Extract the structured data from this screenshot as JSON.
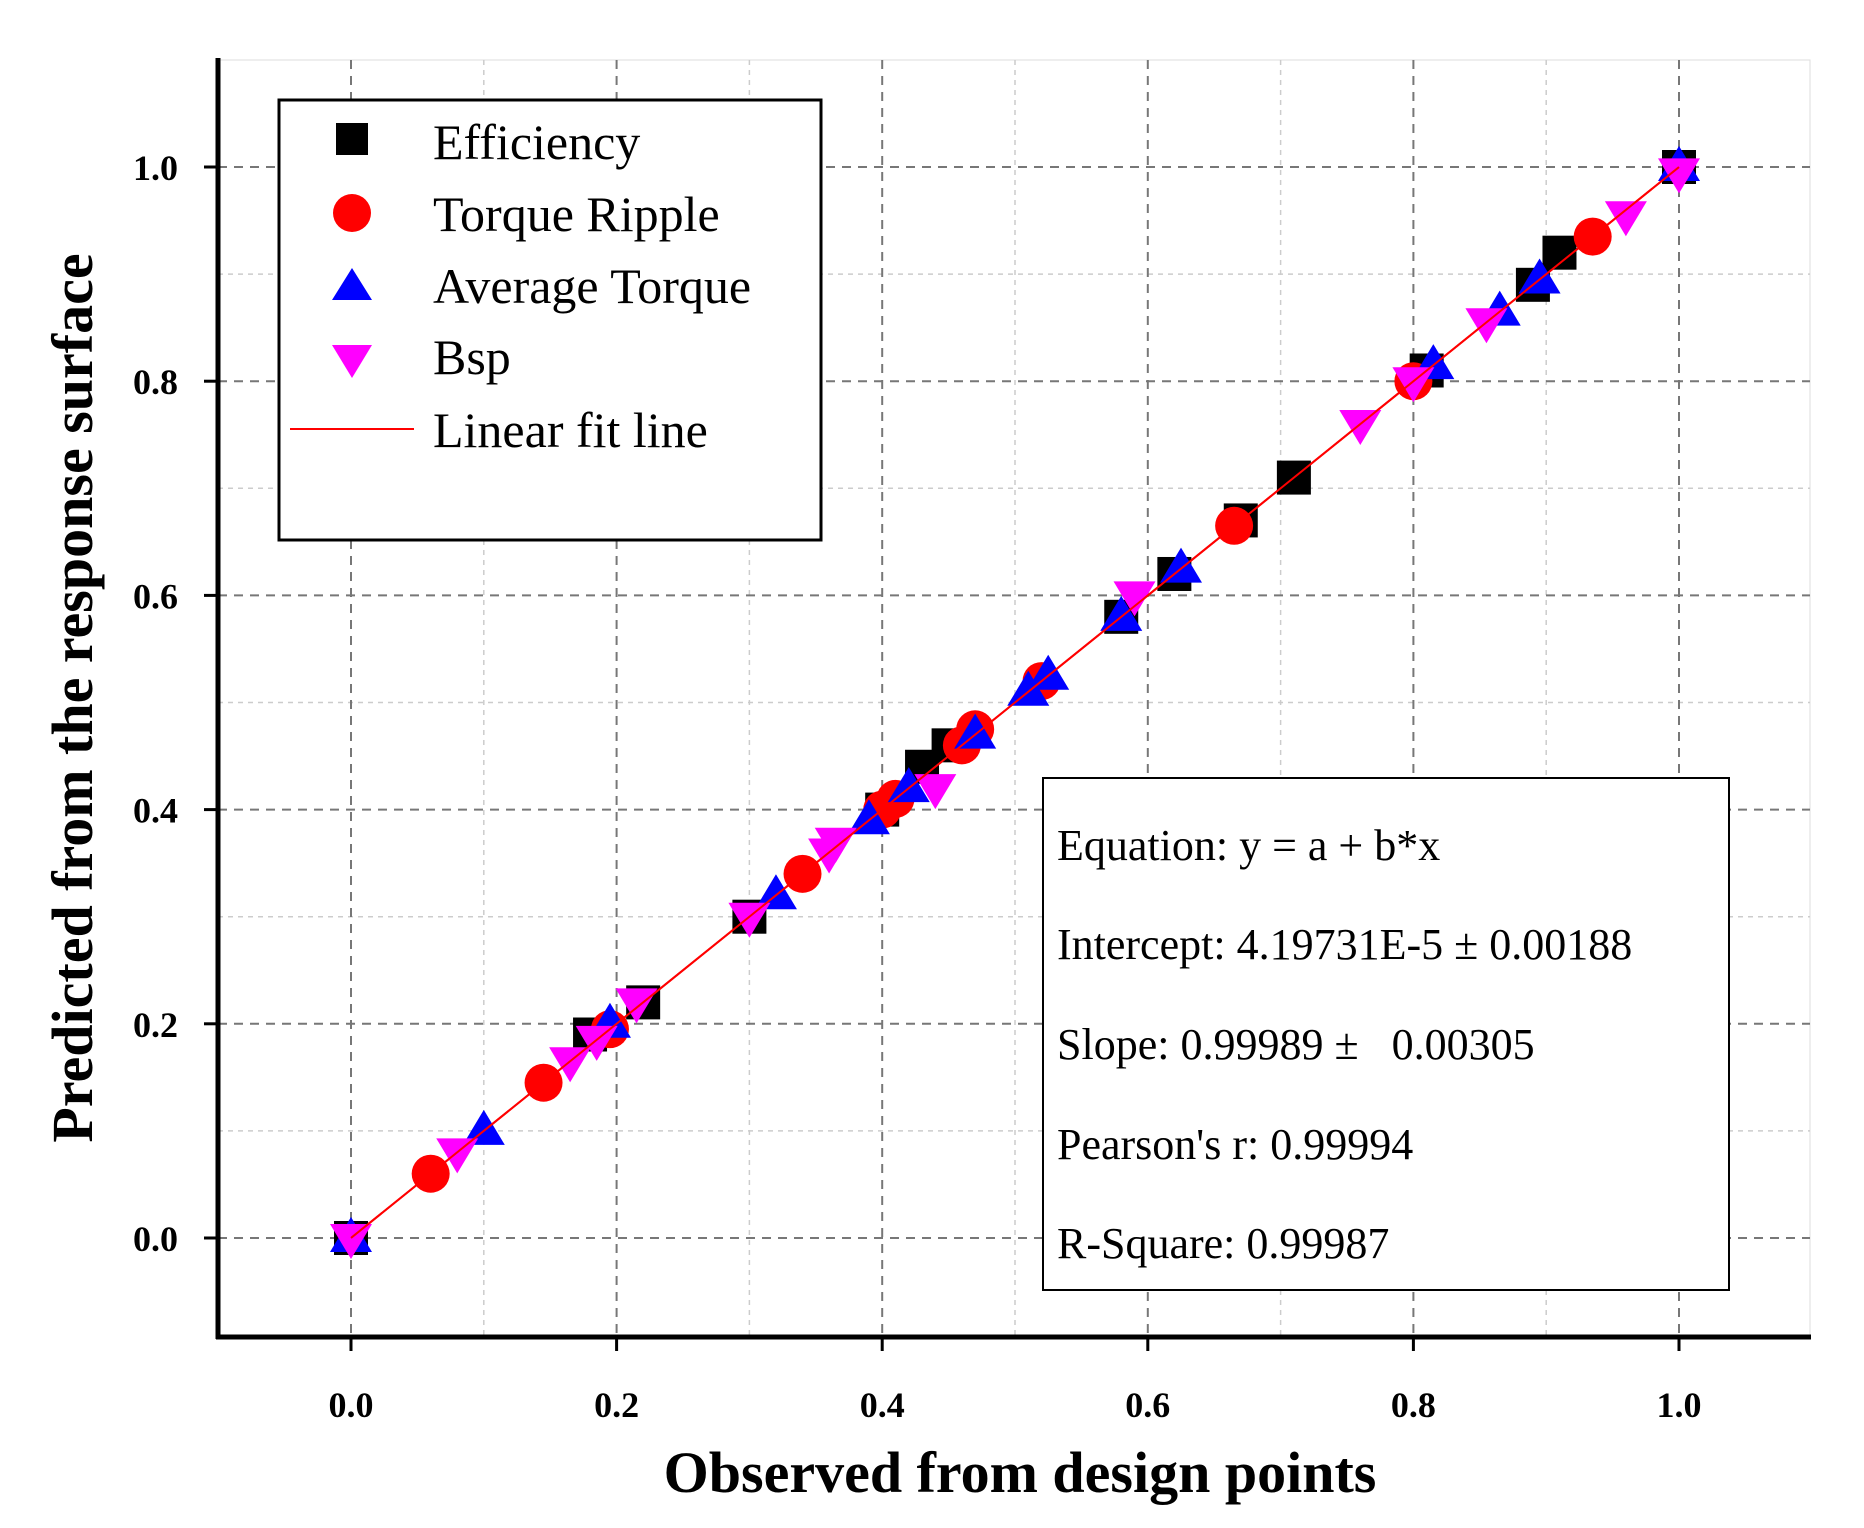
{
  "chart_data": {
    "type": "scatter",
    "title": "",
    "xlabel": "Observed from design points",
    "ylabel": "Predicted from the response surface",
    "xlim": [
      -0.1,
      1.1
    ],
    "ylim": [
      -0.1,
      1.1
    ],
    "xticks": [
      0.0,
      0.2,
      0.4,
      0.6,
      0.8,
      1.0
    ],
    "yticks": [
      0.0,
      0.2,
      0.4,
      0.6,
      0.8,
      1.0
    ],
    "tick_labels": [
      "0.0",
      "0.2",
      "0.4",
      "0.6",
      "0.8",
      "1.0"
    ],
    "grid": true,
    "legend_position": "top-left",
    "series": [
      {
        "name": "Efficiency",
        "marker": "square",
        "color": "#000000",
        "points": [
          [
            0.0,
            0.0
          ],
          [
            0.18,
            0.19
          ],
          [
            0.22,
            0.22
          ],
          [
            0.3,
            0.3
          ],
          [
            0.4,
            0.4
          ],
          [
            0.43,
            0.44
          ],
          [
            0.45,
            0.46
          ],
          [
            0.58,
            0.58
          ],
          [
            0.62,
            0.62
          ],
          [
            0.67,
            0.67
          ],
          [
            0.71,
            0.71
          ],
          [
            0.81,
            0.81
          ],
          [
            0.89,
            0.89
          ],
          [
            0.91,
            0.92
          ],
          [
            1.0,
            1.0
          ]
        ]
      },
      {
        "name": "Torque Ripple",
        "marker": "circle",
        "color": "#ff0000",
        "points": [
          [
            0.06,
            0.06
          ],
          [
            0.145,
            0.145
          ],
          [
            0.195,
            0.195
          ],
          [
            0.34,
            0.34
          ],
          [
            0.4,
            0.4
          ],
          [
            0.41,
            0.41
          ],
          [
            0.46,
            0.46
          ],
          [
            0.47,
            0.475
          ],
          [
            0.52,
            0.52
          ],
          [
            0.665,
            0.665
          ],
          [
            0.8,
            0.8
          ],
          [
            0.935,
            0.935
          ]
        ]
      },
      {
        "name": "Average Torque",
        "marker": "triangle-up",
        "color": "#0000ff",
        "points": [
          [
            0.0,
            0.0
          ],
          [
            0.1,
            0.1
          ],
          [
            0.195,
            0.2
          ],
          [
            0.32,
            0.32
          ],
          [
            0.39,
            0.39
          ],
          [
            0.42,
            0.42
          ],
          [
            0.47,
            0.47
          ],
          [
            0.51,
            0.51
          ],
          [
            0.525,
            0.525
          ],
          [
            0.58,
            0.58
          ],
          [
            0.625,
            0.625
          ],
          [
            0.815,
            0.815
          ],
          [
            0.865,
            0.865
          ],
          [
            0.895,
            0.895
          ],
          [
            1.0,
            1.0
          ]
        ]
      },
      {
        "name": "Bsp",
        "marker": "triangle-down",
        "color": "#ff00ff",
        "points": [
          [
            0.0,
            0.0
          ],
          [
            0.08,
            0.08
          ],
          [
            0.165,
            0.165
          ],
          [
            0.185,
            0.185
          ],
          [
            0.215,
            0.22
          ],
          [
            0.3,
            0.3
          ],
          [
            0.36,
            0.36
          ],
          [
            0.365,
            0.37
          ],
          [
            0.44,
            0.42
          ],
          [
            0.59,
            0.6
          ],
          [
            0.76,
            0.76
          ],
          [
            0.8,
            0.8
          ],
          [
            0.855,
            0.855
          ],
          [
            0.96,
            0.955
          ],
          [
            1.0,
            0.995
          ]
        ]
      }
    ],
    "fit_line": {
      "name": "Linear fit line",
      "color": "#ff0000",
      "intercept": 4.19731e-05,
      "slope": 0.99989,
      "x_range": [
        0.0,
        1.0
      ]
    },
    "legend_entries": [
      "Efficiency",
      "Torque Ripple",
      "Average Torque",
      "Bsp",
      "Linear fit line"
    ],
    "stats": {
      "equation": "Equation: y = a + b*x",
      "intercept": "Intercept: 4.19731E-5 ± 0.00188",
      "slope": "Slope: 0.99989 ±   0.00305",
      "pearson": "Pearson's r: 0.99994",
      "rsquare": "R-Square: 0.99987"
    }
  }
}
